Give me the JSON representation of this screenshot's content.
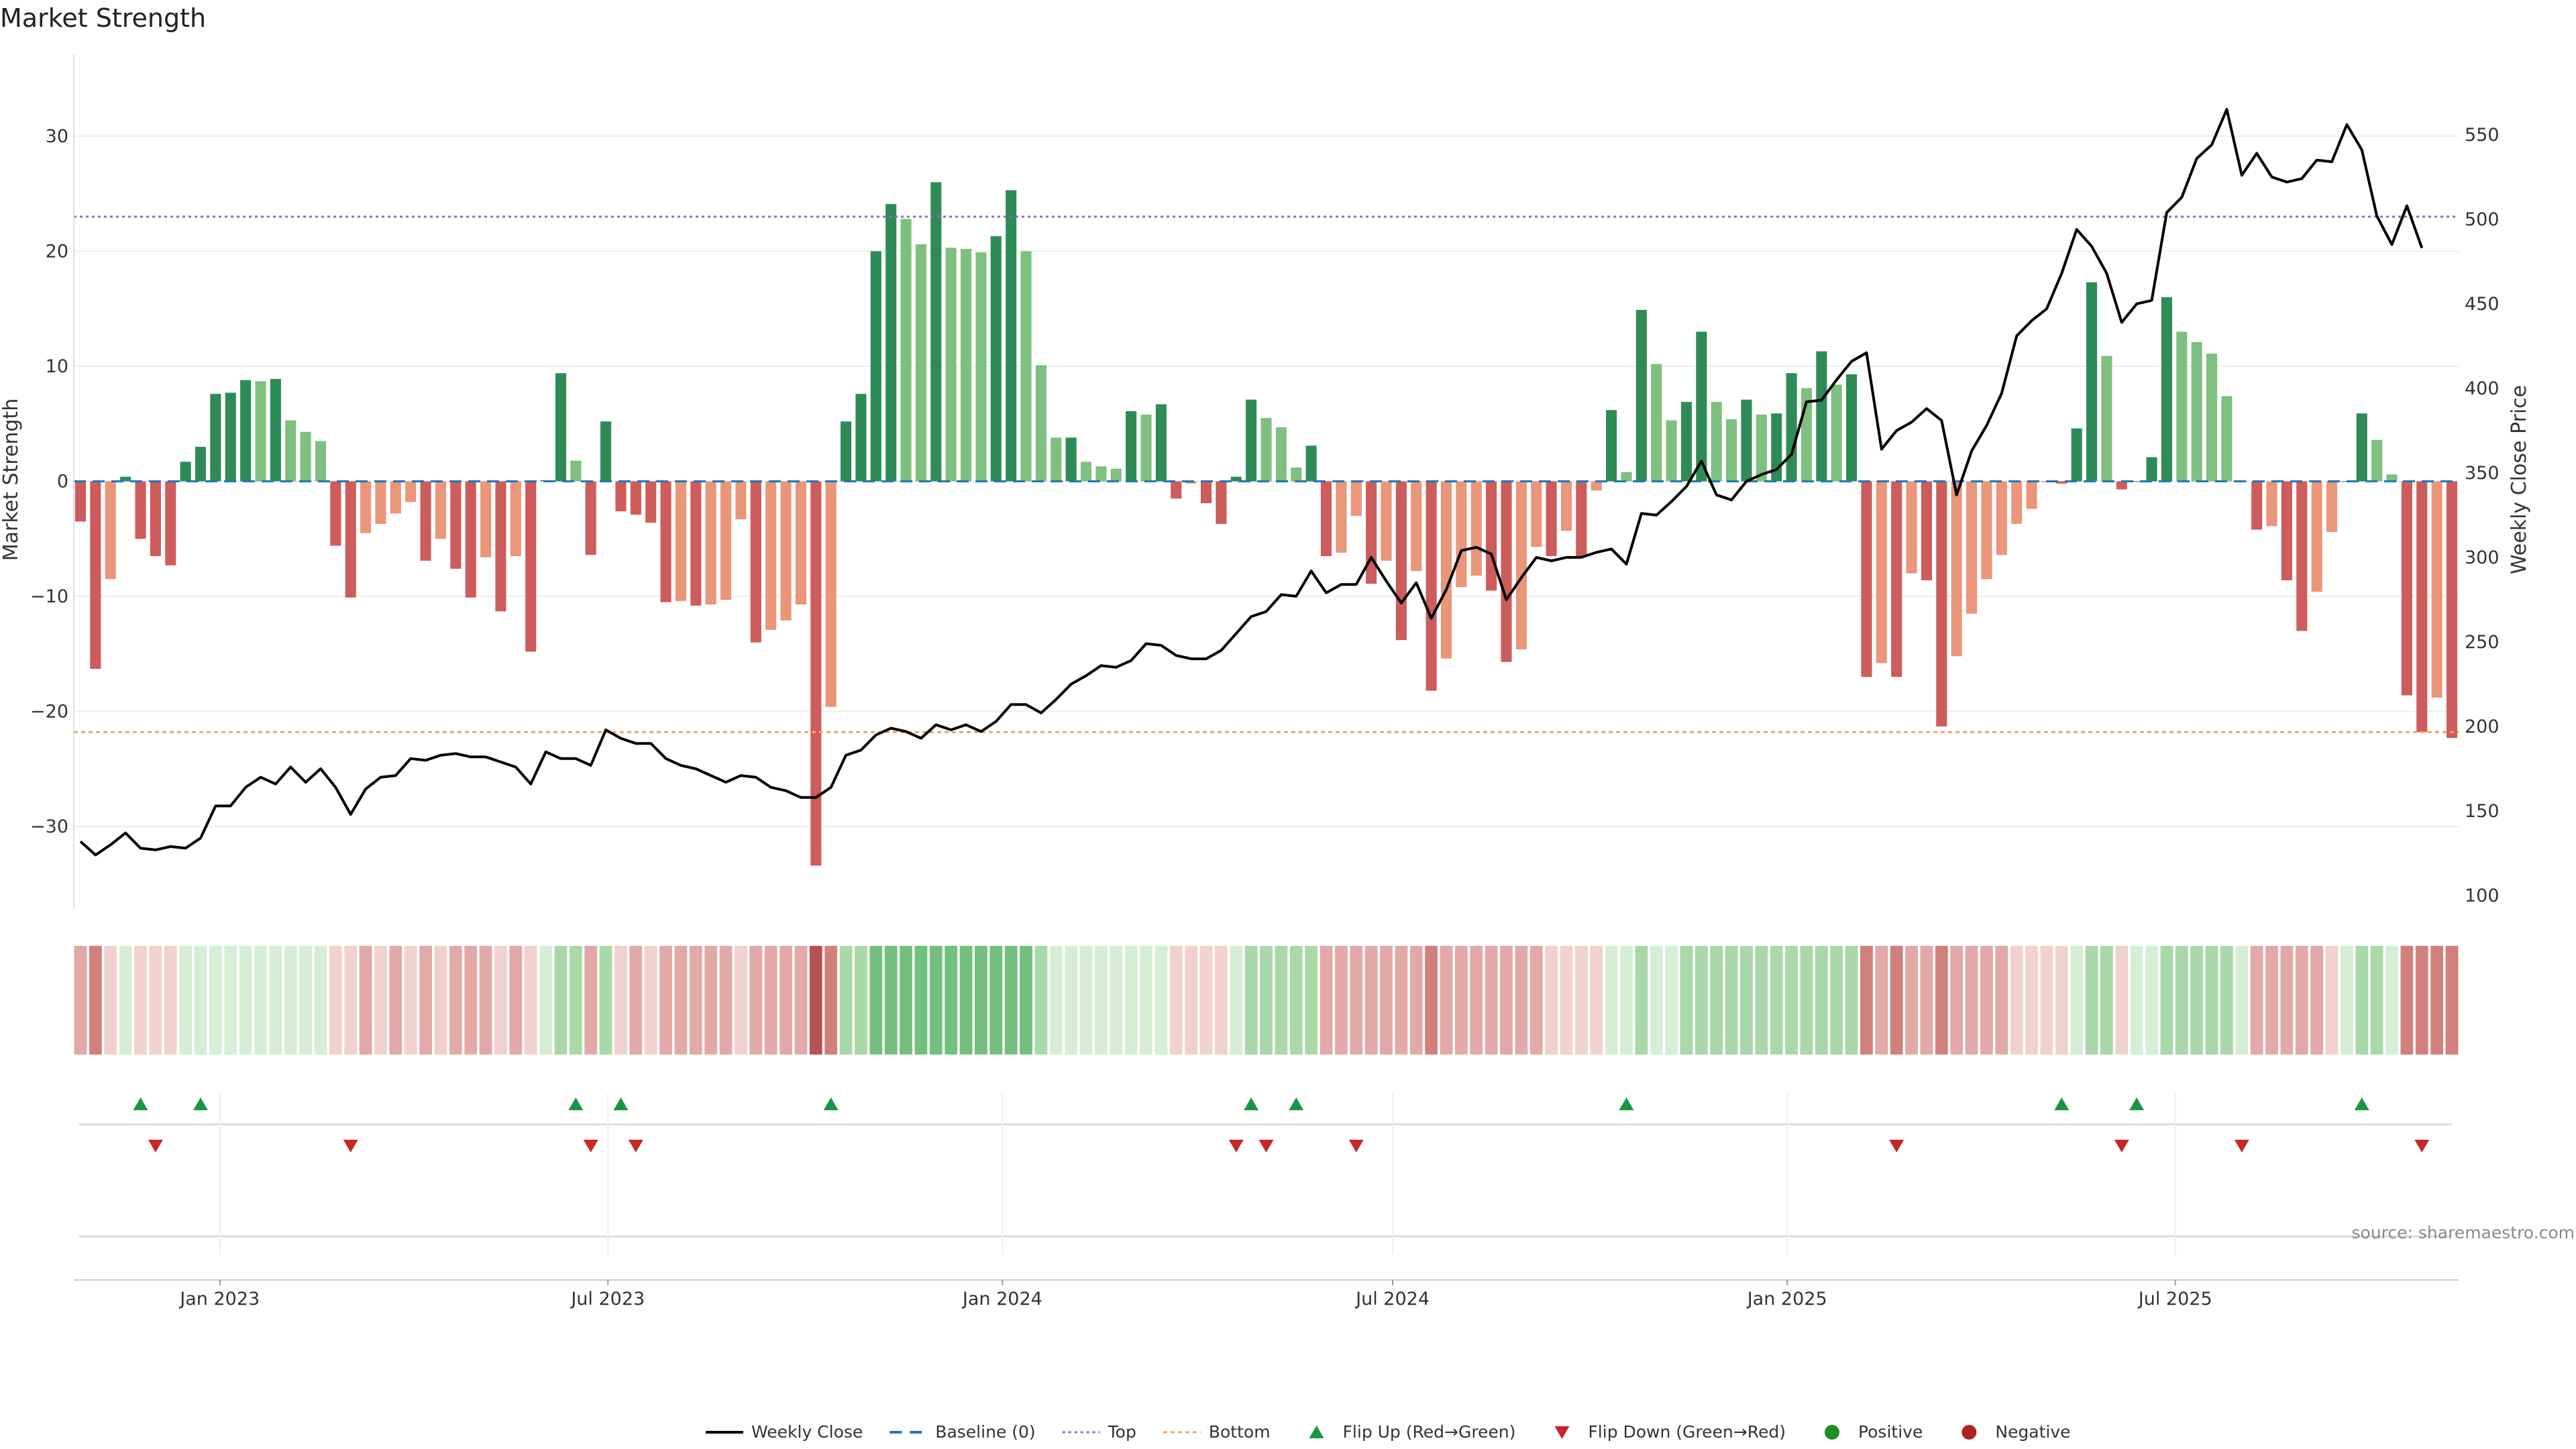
{
  "chart_data": {
    "type": "bar",
    "title": "Market Strength",
    "ylabel": "Market Strength",
    "y2label": "Weekly Close Price",
    "ylim": [
      -36,
      36
    ],
    "y2lim": [
      100,
      590
    ],
    "yticks": [
      -30,
      -20,
      -10,
      0,
      10,
      20,
      30
    ],
    "yticklabels": [
      "−30",
      "−20",
      "−10",
      "0",
      "10",
      "20",
      "30"
    ],
    "y2ticks": [
      100,
      150,
      200,
      250,
      300,
      350,
      400,
      450,
      500,
      550
    ],
    "y2ticklabels": [
      "100",
      "150",
      "200",
      "250",
      "300",
      "350",
      "400",
      "450",
      "500",
      "550"
    ],
    "x_start": "2022-10-28",
    "x_end": "2025-11-07",
    "xticks": [
      "2023-01-01",
      "2023-07-01",
      "2024-01-01",
      "2024-07-01",
      "2025-01-01",
      "2025-07-01"
    ],
    "xticklabels": [
      "Jan 2023",
      "Jul 2023",
      "Jan 2024",
      "Jul 2024",
      "Jan 2025",
      "Jul 2025"
    ],
    "top_threshold": 23,
    "bottom_threshold": -21.8,
    "grid": true,
    "legend_position": "bottom-center",
    "colors": {
      "strong_green": "#2e8b57",
      "light_green": "#7fbf7f",
      "strong_red": "#cd5c5c",
      "light_red": "#e9967a",
      "baseline": "#1f77b4",
      "top": "#9467bd",
      "bottom": "#f4a460",
      "close": "#000000",
      "flip_up": "#1a9641",
      "flip_down": "#c62828",
      "positive": "#228b22",
      "negative": "#b22222"
    },
    "strength": [
      -3.5,
      -16.3,
      -8.5,
      0.4,
      -5,
      -6.5,
      -7.3,
      1.7,
      3,
      7.6,
      7.7,
      8.8,
      8.7,
      8.9,
      5.3,
      4.3,
      3.5,
      -5.6,
      -10.1,
      -4.5,
      -3.7,
      -2.8,
      -1.8,
      -6.9,
      -5,
      -7.6,
      -10.1,
      -6.6,
      -11.3,
      -6.5,
      -14.8,
      0.1,
      9.4,
      1.8,
      -6.4,
      5.2,
      -2.6,
      -2.9,
      -3.6,
      -10.5,
      -10.4,
      -10.8,
      -10.7,
      -10.3,
      -3.3,
      -14,
      -12.9,
      -12.1,
      -10.7,
      -33.4,
      -19.6,
      5.2,
      7.6,
      20,
      24.1,
      22.8,
      20.6,
      26,
      20.3,
      20.2,
      19.9,
      21.3,
      25.3,
      20,
      10.1,
      3.8,
      3.8,
      1.7,
      1.3,
      1.1,
      6.1,
      5.8,
      6.7,
      -1.5,
      -0.2,
      -1.9,
      -3.7,
      0.4,
      7.1,
      5.5,
      4.7,
      1.2,
      3.1,
      -6.5,
      -6.2,
      -3,
      -8.9,
      -6.9,
      -13.8,
      -7.8,
      -18.2,
      -15.4,
      -9.2,
      -8.2,
      -9.5,
      -15.7,
      -14.6,
      -5.7,
      -6.5,
      -4.3,
      -6.5,
      -0.8,
      6.2,
      0.8,
      14.9,
      10.2,
      5.3,
      6.9,
      13,
      6.9,
      5.4,
      7.1,
      5.8,
      5.9,
      9.4,
      8.1,
      11.3,
      8.4,
      9.3,
      -17,
      -15.8,
      -17,
      -8,
      -8.6,
      -21.3,
      -15.2,
      -11.5,
      -8.5,
      -6.4,
      -3.7,
      -2.4,
      -0.1,
      -0.2,
      4.6,
      17.3,
      10.9,
      -0.7,
      0,
      2.1,
      16,
      13,
      12.1,
      11.1,
      7.4,
      0,
      -4.2,
      -3.9,
      -8.6,
      -13,
      -9.6,
      -4.4,
      0,
      5.9,
      3.6,
      0.6,
      -18.6,
      -21.8,
      -18.8,
      -22.3
    ],
    "weekly_close": [
      132,
      124,
      130,
      137,
      128,
      127,
      129,
      128,
      134,
      153,
      153,
      164,
      170,
      166,
      176,
      167,
      175,
      164,
      148,
      163,
      170,
      171,
      181,
      180,
      183,
      184,
      182,
      182,
      179,
      176,
      166,
      185,
      181,
      181,
      177,
      198,
      193,
      190,
      190,
      181,
      177,
      175,
      171,
      167,
      171,
      170,
      164,
      162,
      158,
      158,
      164,
      183,
      186,
      195,
      199,
      197,
      193,
      201,
      198,
      201,
      197,
      203,
      213,
      213,
      208,
      216,
      225,
      230,
      236,
      235,
      239,
      249,
      248,
      242,
      240,
      240,
      245,
      255,
      265,
      268,
      278,
      277,
      292,
      279,
      284,
      284,
      300,
      286,
      273,
      285,
      264,
      281,
      304,
      306,
      302,
      275,
      288,
      300,
      298,
      300,
      300,
      303,
      305,
      296,
      326,
      325,
      333,
      342,
      357,
      337,
      334,
      345,
      349,
      352,
      361,
      392,
      393,
      405,
      416,
      421,
      364,
      375,
      380,
      388,
      381,
      337,
      363,
      378,
      397,
      431,
      440,
      447,
      468,
      494,
      484,
      468,
      439,
      450,
      452,
      504,
      513,
      536,
      544,
      565,
      526,
      539,
      525,
      522,
      524,
      535,
      534,
      556,
      541,
      502,
      485,
      508,
      483
    ],
    "flip_up": [
      "2022-11-25",
      "2022-12-23",
      "2023-06-16",
      "2023-07-07",
      "2023-10-13",
      "2024-04-26",
      "2024-05-17",
      "2024-10-18",
      "2025-05-09",
      "2025-06-13",
      "2025-09-26"
    ],
    "flip_down": [
      "2022-12-02",
      "2023-03-03",
      "2023-06-23",
      "2023-07-14",
      "2024-04-19",
      "2024-05-03",
      "2024-06-14",
      "2025-02-21",
      "2025-06-06",
      "2025-08-01",
      "2025-10-24"
    ],
    "ribbon_strength": [
      2,
      3,
      1,
      1,
      1,
      1,
      1,
      1,
      1,
      1,
      1,
      1,
      1,
      1,
      1,
      1,
      1,
      1,
      1,
      2,
      1,
      2,
      1,
      2,
      1,
      2,
      2,
      2,
      1,
      2,
      1,
      1,
      2,
      2,
      2,
      2,
      1,
      2,
      1,
      2,
      2,
      2,
      2,
      2,
      1,
      2,
      2,
      2,
      2,
      4,
      3,
      2,
      2,
      3,
      3,
      3,
      3,
      3,
      3,
      3,
      3,
      3,
      3,
      3,
      2,
      1,
      1,
      1,
      1,
      1,
      1,
      1,
      1,
      1,
      1,
      1,
      1,
      1,
      2,
      2,
      2,
      2,
      2,
      2,
      2,
      2,
      2,
      2,
      2,
      2,
      3,
      2,
      2,
      2,
      2,
      2,
      2,
      2,
      1,
      1,
      1,
      1,
      1,
      1,
      2,
      1,
      1,
      2,
      2,
      2,
      2,
      2,
      2,
      2,
      2,
      2,
      2,
      2,
      2,
      3,
      2,
      3,
      2,
      2,
      3,
      2,
      2,
      2,
      2,
      1,
      1,
      1,
      1,
      1,
      2,
      2,
      1,
      1,
      1,
      2,
      2,
      2,
      2,
      2,
      1,
      2,
      2,
      2,
      2,
      2,
      1,
      1,
      2,
      2,
      1,
      3,
      3,
      3,
      3
    ],
    "legend": [
      "Weekly Close",
      "Baseline (0)",
      "Top",
      "Bottom",
      "Flip Up (Red→Green)",
      "Flip Down (Green→Red)",
      "Positive",
      "Negative"
    ],
    "source": "source: sharemaestro.com"
  }
}
